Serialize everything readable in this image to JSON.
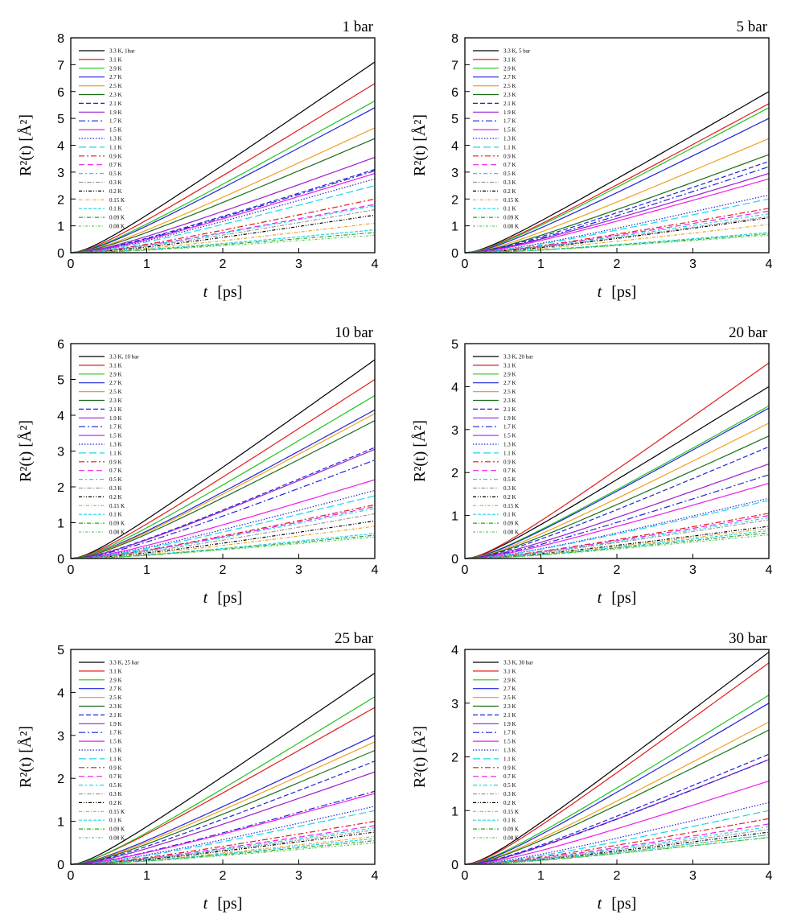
{
  "legend": {
    "temperatures": [
      "3.3 K",
      "3.1 K",
      "2.9 K",
      "2.7 K",
      "2.5 K",
      "2.3 K",
      "2.1 K",
      "1.9 K",
      "1.7 K",
      "1.5 K",
      "1.3 K",
      "1.1 K",
      "0.9 K",
      "0.7 K",
      "0.5 K",
      "0.3 K",
      "0.2 K",
      "0.15 K",
      "0.1 K",
      "0.09 K",
      "0.08 K"
    ],
    "colors": [
      "#000000",
      "#e41a1c",
      "#22c322",
      "#1f24d6",
      "#f0a020",
      "#1a6e1a",
      "#1f24d6",
      "#9b1fd0",
      "#1f24d6",
      "#ee1cee",
      "#1f24d6",
      "#1cd6e8",
      "#e41a1c",
      "#ee1cee",
      "#1cd6e8",
      "#999999",
      "#000000",
      "#f0a020",
      "#1cd6e8",
      "#22aa22",
      "#66cc66"
    ],
    "dashes": [
      "",
      "",
      "",
      "",
      "",
      "",
      "6,3",
      "",
      "8,3,2,3",
      "",
      "1.5,2",
      "9,4",
      "7,3,2,3",
      "7,4",
      "5,3,2,3",
      "5,2,1.5,2",
      "4,2,1,2,1,2",
      "4,2,1,2",
      "4,2",
      "5,2,1,2",
      "3,2,1,2"
    ]
  },
  "chart_data": [
    {
      "type": "line",
      "title": "1 bar",
      "legend_first": "3.3 K, 1bar",
      "xlabel_var": "t",
      "xlabel_unit": "[ps]",
      "ylabel": "R²(t)  [Å²]",
      "xlim": [
        0,
        4
      ],
      "ylim": [
        0,
        8
      ],
      "xticks": [
        "0",
        "1",
        "2",
        "3",
        "4"
      ],
      "yticks": [
        "0",
        "1",
        "2",
        "3",
        "4",
        "5",
        "6",
        "7",
        "8"
      ],
      "series_final_values": [
        7.1,
        6.3,
        5.65,
        5.4,
        4.65,
        4.25,
        3.1,
        3.55,
        3.05,
        2.95,
        2.75,
        2.5,
        2.0,
        1.8,
        1.75,
        1.6,
        1.4,
        1.1,
        0.85,
        0.75,
        0.65
      ]
    },
    {
      "type": "line",
      "title": "5 bar",
      "legend_first": "3.3 K, 5 bar",
      "xlabel_var": "t",
      "xlabel_unit": "[ps]",
      "ylabel": "R²(t)  [Å²]",
      "xlim": [
        0,
        4
      ],
      "ylim": [
        0,
        8
      ],
      "xticks": [
        "0",
        "1",
        "2",
        "3",
        "4"
      ],
      "yticks": [
        "0",
        "1",
        "2",
        "3",
        "4",
        "5",
        "6",
        "7",
        "8"
      ],
      "series_final_values": [
        6.0,
        5.55,
        5.4,
        5.0,
        4.25,
        3.65,
        3.4,
        2.95,
        3.2,
        2.75,
        2.15,
        2.0,
        1.65,
        1.55,
        1.45,
        1.35,
        1.3,
        1.05,
        0.75,
        0.7,
        0.65
      ]
    },
    {
      "type": "line",
      "title": "10 bar",
      "legend_first": "3.3 K, 10 bar",
      "xlabel_var": "t",
      "xlabel_unit": "[ps]",
      "ylabel": "R²(t)  [Å²]",
      "xlim": [
        0,
        4
      ],
      "ylim": [
        0,
        6
      ],
      "xticks": [
        "0",
        "1",
        "2",
        "3",
        "4"
      ],
      "yticks": [
        "0",
        "1",
        "2",
        "3",
        "4",
        "5",
        "6"
      ],
      "series_final_values": [
        5.55,
        5.0,
        4.55,
        4.15,
        4.05,
        3.85,
        3.1,
        3.05,
        2.75,
        2.2,
        1.9,
        1.75,
        1.5,
        1.45,
        1.4,
        1.25,
        1.05,
        0.9,
        0.7,
        0.65,
        0.6
      ]
    },
    {
      "type": "line",
      "title": "20 bar",
      "legend_first": "3.3 K, 20 bar",
      "xlabel_var": "t",
      "xlabel_unit": "[ps]",
      "ylabel": "R²(t)  [Å²]",
      "xlim": [
        0,
        4
      ],
      "ylim": [
        0,
        5
      ],
      "xticks": [
        "0",
        "1",
        "2",
        "3",
        "4"
      ],
      "yticks": [
        "0",
        "1",
        "2",
        "3",
        "4",
        "5"
      ],
      "series_final_values": [
        4.0,
        4.55,
        3.55,
        3.5,
        3.15,
        2.85,
        2.6,
        2.2,
        1.95,
        1.75,
        1.4,
        1.35,
        1.05,
        1.0,
        0.95,
        0.9,
        0.75,
        0.7,
        0.65,
        0.6,
        0.55
      ]
    },
    {
      "type": "line",
      "title": "25 bar",
      "legend_first": "3.3 K, 25 bar",
      "xlabel_var": "t",
      "xlabel_unit": "[ps]",
      "ylabel": "R²(t)  [Å²]",
      "xlim": [
        0,
        4
      ],
      "ylim": [
        0,
        5
      ],
      "xticks": [
        "0",
        "1",
        "2",
        "3",
        "4"
      ],
      "yticks": [
        "0",
        "1",
        "2",
        "3",
        "4",
        "5"
      ],
      "series_final_values": [
        4.45,
        3.65,
        3.9,
        3.0,
        2.85,
        2.65,
        2.4,
        2.15,
        1.7,
        1.65,
        1.35,
        1.25,
        1.0,
        0.9,
        0.85,
        0.8,
        0.75,
        0.65,
        0.6,
        0.55,
        0.5
      ]
    },
    {
      "type": "line",
      "title": "30 bar",
      "legend_first": "3.3 K, 30 bar",
      "xlabel_var": "t",
      "xlabel_unit": "[ps]",
      "ylabel": "R²(t)  [Å²]",
      "xlim": [
        0,
        4
      ],
      "ylim": [
        0,
        4
      ],
      "xticks": [
        "0",
        "1",
        "2",
        "3",
        "4"
      ],
      "yticks": [
        "0",
        "1",
        "2",
        "3",
        "4"
      ],
      "series_final_values": [
        3.95,
        3.75,
        3.15,
        3.0,
        2.65,
        2.5,
        2.05,
        1.95,
        1.95,
        1.55,
        1.15,
        1.0,
        0.85,
        0.75,
        0.7,
        0.65,
        0.6,
        0.55,
        0.55,
        0.5,
        0.5
      ]
    }
  ]
}
